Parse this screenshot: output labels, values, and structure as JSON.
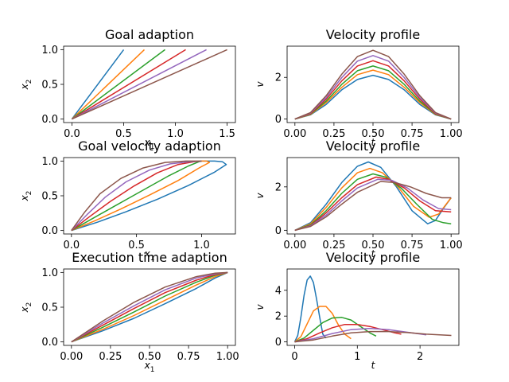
{
  "figure": {
    "colors": [
      "#1f77b4",
      "#ff7f0e",
      "#2ca02c",
      "#d62728",
      "#9467bd",
      "#8c564b"
    ]
  },
  "chart_data": [
    {
      "id": "goal-adaption",
      "type": "line",
      "title": "Goal adaption",
      "xlabel": {
        "base": "x",
        "sub": "1"
      },
      "ylabel": {
        "base": "x",
        "sub": "2"
      },
      "xlim": [
        -0.08,
        1.58
      ],
      "ylim": [
        -0.05,
        1.05
      ],
      "xticks": [
        0.0,
        0.5,
        1.0,
        1.5
      ],
      "xtick_labels": [
        "0.0",
        "0.5",
        "1.0",
        "1.5"
      ],
      "yticks": [
        0.0,
        0.5,
        1.0
      ],
      "ytick_labels": [
        "0.0",
        "0.5",
        "1.0"
      ],
      "grid": false,
      "series": [
        {
          "x": [
            0,
            0.5
          ],
          "y": [
            0,
            1.0
          ]
        },
        {
          "x": [
            0,
            0.7
          ],
          "y": [
            0,
            1.0
          ]
        },
        {
          "x": [
            0,
            0.9
          ],
          "y": [
            0,
            1.0
          ]
        },
        {
          "x": [
            0,
            1.1
          ],
          "y": [
            0,
            1.0
          ]
        },
        {
          "x": [
            0,
            1.3
          ],
          "y": [
            0,
            1.0
          ]
        },
        {
          "x": [
            0,
            1.5
          ],
          "y": [
            0,
            1.0
          ]
        }
      ]
    },
    {
      "id": "velocity-profile-1",
      "type": "line",
      "title": "Velocity profile",
      "xlabel": {
        "base": "t",
        "sub": ""
      },
      "ylabel": {
        "base": "v",
        "sub": ""
      },
      "xlim": [
        -0.05,
        1.05
      ],
      "ylim": [
        -0.17,
        3.5
      ],
      "xticks": [
        0.0,
        0.25,
        0.5,
        0.75,
        1.0
      ],
      "xtick_labels": [
        "0.00",
        "0.25",
        "0.50",
        "0.75",
        "1.00"
      ],
      "yticks": [
        0,
        2
      ],
      "ytick_labels": [
        "0",
        "2"
      ],
      "grid": false,
      "series": [
        {
          "x": [
            0,
            0.1,
            0.2,
            0.3,
            0.4,
            0.5,
            0.6,
            0.7,
            0.8,
            0.9,
            1.0
          ],
          "y": [
            0.0,
            0.2,
            0.7,
            1.4,
            1.9,
            2.1,
            1.9,
            1.4,
            0.7,
            0.2,
            0.0
          ]
        },
        {
          "x": [
            0,
            0.1,
            0.2,
            0.3,
            0.4,
            0.5,
            0.6,
            0.7,
            0.8,
            0.9,
            1.0
          ],
          "y": [
            0.0,
            0.22,
            0.79,
            1.52,
            2.13,
            2.35,
            2.13,
            1.52,
            0.79,
            0.22,
            0.0
          ]
        },
        {
          "x": [
            0,
            0.1,
            0.2,
            0.3,
            0.4,
            0.5,
            0.6,
            0.7,
            0.8,
            0.9,
            1.0
          ],
          "y": [
            0.0,
            0.24,
            0.86,
            1.66,
            2.32,
            2.55,
            2.32,
            1.66,
            0.86,
            0.24,
            0.0
          ]
        },
        {
          "x": [
            0,
            0.1,
            0.2,
            0.3,
            0.4,
            0.5,
            0.6,
            0.7,
            0.8,
            0.9,
            1.0
          ],
          "y": [
            0.0,
            0.26,
            0.95,
            1.83,
            2.55,
            2.8,
            2.55,
            1.83,
            0.95,
            0.26,
            0.0
          ]
        },
        {
          "x": [
            0,
            0.1,
            0.2,
            0.3,
            0.4,
            0.5,
            0.6,
            0.7,
            0.8,
            0.9,
            1.0
          ],
          "y": [
            0.0,
            0.29,
            1.03,
            1.99,
            2.78,
            3.05,
            2.78,
            1.99,
            1.03,
            0.29,
            0.0
          ]
        },
        {
          "x": [
            0,
            0.1,
            0.2,
            0.3,
            0.4,
            0.5,
            0.6,
            0.7,
            0.8,
            0.9,
            1.0
          ],
          "y": [
            0.0,
            0.31,
            1.12,
            2.15,
            3.0,
            3.3,
            3.0,
            2.15,
            1.12,
            0.31,
            0.0
          ]
        }
      ]
    },
    {
      "id": "goal-velocity-adaption",
      "type": "line",
      "title": "Goal velocity adaption",
      "xlabel": {
        "base": "x",
        "sub": "1"
      },
      "ylabel": {
        "base": "x",
        "sub": "2"
      },
      "xlim": [
        -0.06,
        1.26
      ],
      "ylim": [
        -0.05,
        1.05
      ],
      "xticks": [
        0.0,
        0.5,
        1.0
      ],
      "xtick_labels": [
        "0.0",
        "0.5",
        "1.0"
      ],
      "yticks": [
        0.0,
        0.5,
        1.0
      ],
      "ytick_labels": [
        "0.0",
        "0.5",
        "1.0"
      ],
      "grid": false,
      "series": [
        {
          "x": [
            0,
            0.2,
            0.42,
            0.66,
            0.9,
            1.1,
            1.19,
            1.16,
            1.1,
            1.0
          ],
          "y": [
            0,
            0.12,
            0.27,
            0.45,
            0.65,
            0.84,
            0.95,
            0.99,
            1.0,
            1.0
          ]
        },
        {
          "x": [
            0,
            0.18,
            0.38,
            0.6,
            0.82,
            0.98,
            1.06,
            1.04,
            1.0
          ],
          "y": [
            0,
            0.14,
            0.31,
            0.51,
            0.72,
            0.9,
            0.98,
            1.0,
            1.0
          ]
        },
        {
          "x": [
            0,
            0.16,
            0.34,
            0.54,
            0.74,
            0.9,
            0.98,
            1.0
          ],
          "y": [
            0,
            0.17,
            0.36,
            0.57,
            0.78,
            0.93,
            0.99,
            1.0
          ]
        },
        {
          "x": [
            0,
            0.14,
            0.3,
            0.48,
            0.66,
            0.82,
            0.94,
            1.0
          ],
          "y": [
            0,
            0.2,
            0.42,
            0.64,
            0.83,
            0.95,
            0.99,
            1.0
          ]
        },
        {
          "x": [
            0,
            0.12,
            0.26,
            0.42,
            0.6,
            0.76,
            0.9,
            1.0
          ],
          "y": [
            0,
            0.23,
            0.48,
            0.7,
            0.87,
            0.96,
            0.99,
            1.0
          ]
        },
        {
          "x": [
            0,
            0.1,
            0.22,
            0.38,
            0.55,
            0.72,
            0.88,
            1.0
          ],
          "y": [
            0,
            0.26,
            0.53,
            0.75,
            0.9,
            0.98,
            1.0,
            1.0
          ]
        }
      ]
    },
    {
      "id": "velocity-profile-2",
      "type": "line",
      "title": "Velocity profile",
      "xlabel": {
        "base": "t",
        "sub": ""
      },
      "ylabel": {
        "base": "v",
        "sub": ""
      },
      "xlim": [
        -0.05,
        1.05
      ],
      "ylim": [
        -0.17,
        3.35
      ],
      "xticks": [
        0.0,
        0.25,
        0.5,
        0.75,
        1.0
      ],
      "xtick_labels": [
        "0.00",
        "0.25",
        "0.50",
        "0.75",
        "1.00"
      ],
      "yticks": [
        0,
        2
      ],
      "ytick_labels": [
        "0",
        "2"
      ],
      "grid": false,
      "series": [
        {
          "x": [
            0,
            0.1,
            0.2,
            0.3,
            0.4,
            0.47,
            0.55,
            0.65,
            0.75,
            0.85,
            0.9,
            0.95,
            1.0
          ],
          "y": [
            0.0,
            0.35,
            1.2,
            2.2,
            2.95,
            3.15,
            2.9,
            2.0,
            0.9,
            0.3,
            0.45,
            1.0,
            1.5
          ]
        },
        {
          "x": [
            0,
            0.1,
            0.2,
            0.3,
            0.4,
            0.48,
            0.56,
            0.66,
            0.76,
            0.86,
            0.92,
            1.0
          ],
          "y": [
            0.0,
            0.3,
            1.05,
            1.95,
            2.65,
            2.85,
            2.65,
            2.0,
            1.1,
            0.6,
            0.75,
            1.5
          ]
        },
        {
          "x": [
            0,
            0.1,
            0.2,
            0.3,
            0.4,
            0.5,
            0.58,
            0.68,
            0.78,
            0.88,
            0.95,
            1.0
          ],
          "y": [
            0.0,
            0.25,
            0.9,
            1.7,
            2.35,
            2.6,
            2.45,
            1.95,
            1.2,
            0.5,
            0.35,
            0.3
          ]
        },
        {
          "x": [
            0,
            0.1,
            0.2,
            0.3,
            0.4,
            0.52,
            0.6,
            0.7,
            0.8,
            0.9,
            1.0
          ],
          "y": [
            0.0,
            0.22,
            0.8,
            1.5,
            2.1,
            2.45,
            2.35,
            1.95,
            1.35,
            0.9,
            0.85
          ]
        },
        {
          "x": [
            0,
            0.1,
            0.2,
            0.3,
            0.4,
            0.53,
            0.62,
            0.72,
            0.82,
            0.92,
            1.0
          ],
          "y": [
            0.0,
            0.2,
            0.7,
            1.35,
            1.95,
            2.35,
            2.3,
            1.95,
            1.4,
            1.0,
            0.95
          ]
        },
        {
          "x": [
            0,
            0.1,
            0.2,
            0.3,
            0.4,
            0.55,
            0.64,
            0.74,
            0.84,
            0.94,
            1.0
          ],
          "y": [
            0.0,
            0.18,
            0.62,
            1.2,
            1.75,
            2.25,
            2.2,
            2.0,
            1.7,
            1.5,
            1.5
          ]
        }
      ]
    },
    {
      "id": "execution-time-adaption",
      "type": "line",
      "title": "Execution time adaption",
      "xlabel": {
        "base": "x",
        "sub": "1"
      },
      "ylabel": {
        "base": "x",
        "sub": "2"
      },
      "xlim": [
        -0.05,
        1.05
      ],
      "ylim": [
        -0.05,
        1.05
      ],
      "xticks": [
        0.0,
        0.25,
        0.5,
        0.75,
        1.0
      ],
      "xtick_labels": [
        "0.00",
        "0.25",
        "0.50",
        "0.75",
        "1.00"
      ],
      "yticks": [
        0.0,
        0.5,
        1.0
      ],
      "ytick_labels": [
        "0.0",
        "0.5",
        "1.0"
      ],
      "grid": false,
      "series": [
        {
          "x": [
            0,
            0.2,
            0.4,
            0.6,
            0.8,
            0.92,
            1.0
          ],
          "y": [
            0,
            0.16,
            0.34,
            0.55,
            0.77,
            0.92,
            1.0
          ]
        },
        {
          "x": [
            0,
            0.2,
            0.4,
            0.6,
            0.8,
            0.92,
            1.0
          ],
          "y": [
            0,
            0.18,
            0.38,
            0.6,
            0.82,
            0.94,
            1.0
          ]
        },
        {
          "x": [
            0,
            0.2,
            0.4,
            0.6,
            0.8,
            0.92,
            1.0
          ],
          "y": [
            0,
            0.21,
            0.43,
            0.66,
            0.86,
            0.96,
            1.0
          ]
        },
        {
          "x": [
            0,
            0.2,
            0.4,
            0.6,
            0.8,
            0.92,
            1.0
          ],
          "y": [
            0,
            0.24,
            0.48,
            0.71,
            0.89,
            0.97,
            1.0
          ]
        },
        {
          "x": [
            0,
            0.2,
            0.4,
            0.6,
            0.8,
            0.92,
            1.0
          ],
          "y": [
            0,
            0.27,
            0.52,
            0.75,
            0.92,
            0.98,
            1.0
          ]
        },
        {
          "x": [
            0,
            0.2,
            0.4,
            0.6,
            0.8,
            0.92,
            1.0
          ],
          "y": [
            0,
            0.3,
            0.57,
            0.79,
            0.94,
            0.99,
            1.0
          ]
        }
      ]
    },
    {
      "id": "velocity-profile-3",
      "type": "line",
      "title": "Velocity profile",
      "xlabel": {
        "base": "t",
        "sub": ""
      },
      "ylabel": {
        "base": "v",
        "sub": ""
      },
      "xlim": [
        -0.12,
        2.62
      ],
      "ylim": [
        -0.27,
        5.65
      ],
      "xticks": [
        0,
        1,
        2
      ],
      "xtick_labels": [
        "0",
        "1",
        "2"
      ],
      "yticks": [
        0,
        2,
        4
      ],
      "ytick_labels": [
        "0",
        "2",
        "4"
      ],
      "grid": false,
      "series": [
        {
          "x": [
            0,
            0.05,
            0.1,
            0.15,
            0.2,
            0.25,
            0.3,
            0.35,
            0.4,
            0.45,
            0.5
          ],
          "y": [
            0.0,
            0.5,
            1.9,
            3.6,
            4.8,
            5.1,
            4.6,
            3.3,
            1.9,
            0.6,
            0.3
          ]
        },
        {
          "x": [
            0,
            0.1,
            0.2,
            0.3,
            0.4,
            0.5,
            0.6,
            0.7,
            0.8,
            0.9
          ],
          "y": [
            0.0,
            0.4,
            1.4,
            2.4,
            2.75,
            2.75,
            2.2,
            1.3,
            0.6,
            0.25
          ]
        },
        {
          "x": [
            0,
            0.15,
            0.3,
            0.45,
            0.6,
            0.75,
            0.9,
            1.05,
            1.2,
            1.3
          ],
          "y": [
            0.0,
            0.3,
            0.9,
            1.5,
            1.85,
            1.9,
            1.7,
            1.2,
            0.7,
            0.45
          ]
        },
        {
          "x": [
            0,
            0.2,
            0.4,
            0.6,
            0.8,
            1.0,
            1.2,
            1.4,
            1.6,
            1.7
          ],
          "y": [
            0.0,
            0.25,
            0.7,
            1.1,
            1.35,
            1.35,
            1.2,
            0.95,
            0.7,
            0.6
          ]
        },
        {
          "x": [
            0,
            0.3,
            0.6,
            0.9,
            1.2,
            1.5,
            1.8,
            2.1
          ],
          "y": [
            0.0,
            0.25,
            0.65,
            0.95,
            1.05,
            0.95,
            0.75,
            0.55
          ]
        },
        {
          "x": [
            0,
            0.3,
            0.6,
            0.9,
            1.2,
            1.5,
            1.8,
            2.1,
            2.5
          ],
          "y": [
            0.0,
            0.15,
            0.45,
            0.7,
            0.8,
            0.8,
            0.72,
            0.6,
            0.5
          ]
        }
      ]
    }
  ]
}
